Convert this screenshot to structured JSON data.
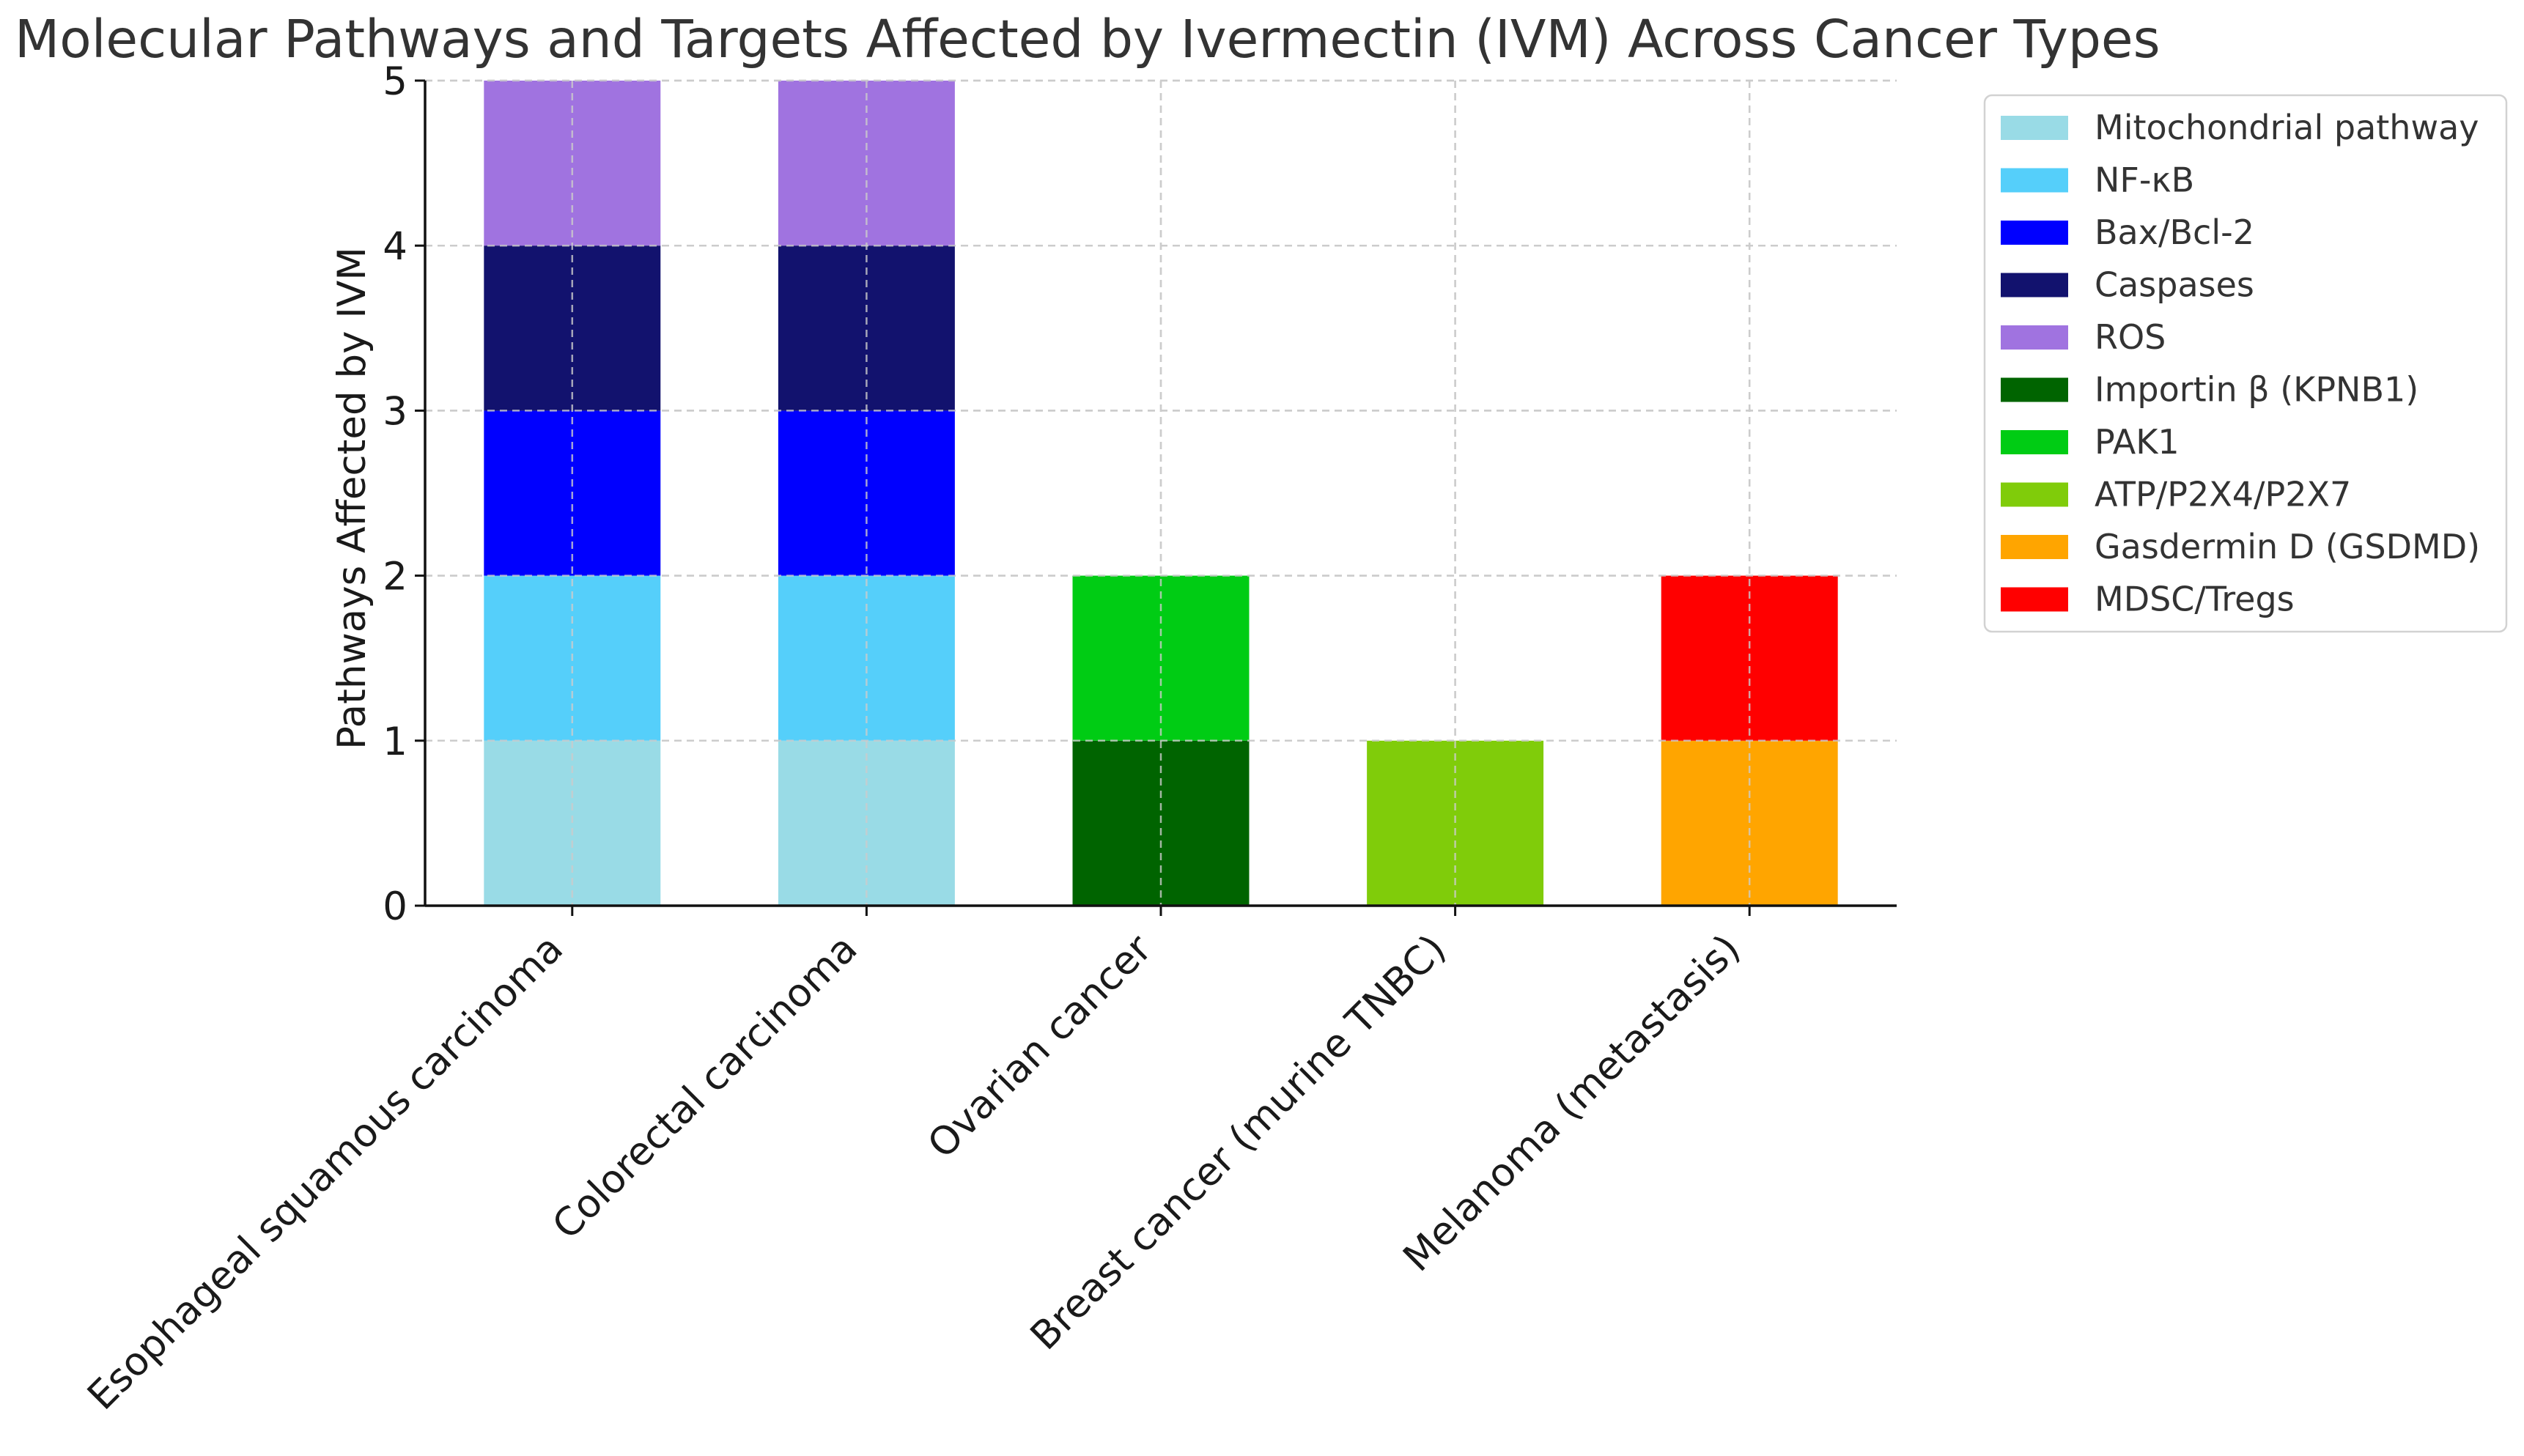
{
  "chart_data": {
    "type": "bar",
    "stacked": true,
    "title": "Molecular Pathways and Targets Affected by Ivermectin (IVM) Across Cancer Types",
    "xlabel": "",
    "ylabel": "Pathways Affected by IVM",
    "ylim": [
      0,
      5
    ],
    "yticks": [
      0,
      1,
      2,
      3,
      4,
      5
    ],
    "grid": true,
    "legend_position": "outside-right",
    "categories": [
      "Esophageal squamous carcinoma",
      "Colorectal carcinoma",
      "Ovarian cancer",
      "Breast cancer (murine TNBC)",
      "Melanoma (metastasis)"
    ],
    "series": [
      {
        "name": "Mitochondrial pathway",
        "color": "#99dbe6",
        "values": [
          1,
          1,
          0,
          0,
          0
        ]
      },
      {
        "name": "NF-κB",
        "color": "#55cffa",
        "values": [
          1,
          1,
          0,
          0,
          0
        ]
      },
      {
        "name": "Bax/Bcl-2",
        "color": "#0000ff",
        "values": [
          1,
          1,
          0,
          0,
          0
        ]
      },
      {
        "name": "Caspases",
        "color": "#12126e",
        "values": [
          1,
          1,
          0,
          0,
          0
        ]
      },
      {
        "name": "ROS",
        "color": "#a073e0",
        "values": [
          1,
          1,
          0,
          0,
          0
        ]
      },
      {
        "name": "Importin β (KPNB1)",
        "color": "#006400",
        "values": [
          0,
          0,
          1,
          0,
          0
        ]
      },
      {
        "name": "PAK1",
        "color": "#00cc14",
        "values": [
          0,
          0,
          1,
          0,
          0
        ]
      },
      {
        "name": "ATP/P2X4/P2X7",
        "color": "#80cc0a",
        "values": [
          0,
          0,
          0,
          1,
          0
        ]
      },
      {
        "name": "Gasdermin D (GSDMD)",
        "color": "#ffa500",
        "values": [
          0,
          0,
          0,
          0,
          1
        ]
      },
      {
        "name": "MDSC/Tregs",
        "color": "#ff0000",
        "values": [
          0,
          0,
          0,
          0,
          1
        ]
      }
    ]
  }
}
